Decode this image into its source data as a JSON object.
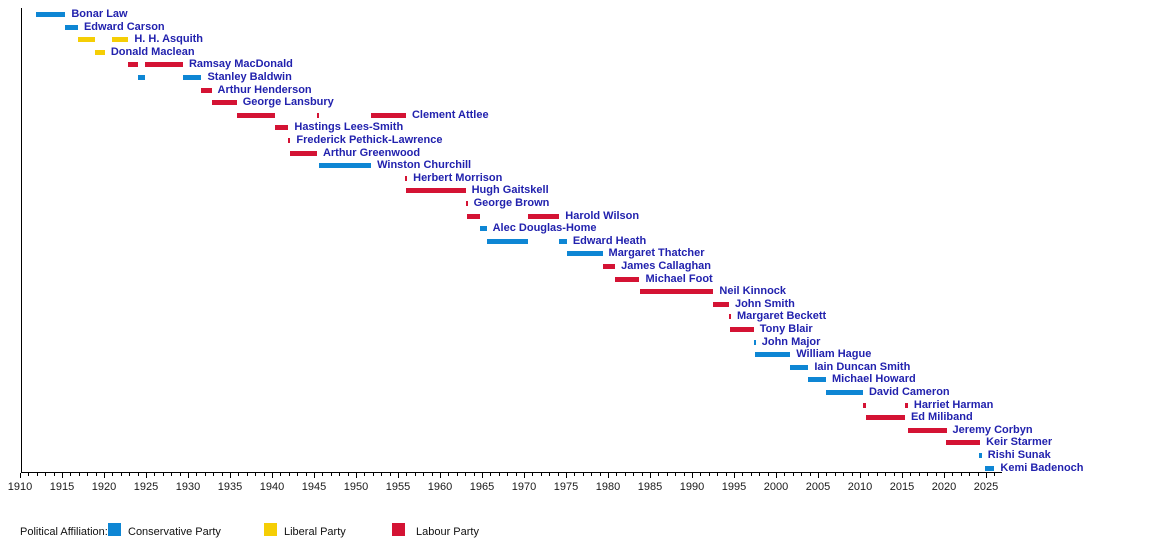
{
  "chart": {
    "legend_title": "Political Affiliation:",
    "label_color": "#2222AE",
    "axis_color": "#000000",
    "parties": {
      "conservative": {
        "label": "Conservative Party",
        "color": "#0E86D4"
      },
      "liberal": {
        "label": "Liberal Party",
        "color": "#F5CE05"
      },
      "labour": {
        "label": "Labour Party",
        "color": "#D41334"
      }
    }
  },
  "chart_data": {
    "type": "bar",
    "subtype": "gantt-timeline",
    "title": "",
    "xlabel": "",
    "ylabel": "",
    "x_axis": {
      "min": 1910,
      "max": 2027,
      "major_tick_step": 5,
      "minor_tick_step": 1,
      "tick_labels": [
        1910,
        1915,
        1920,
        1925,
        1930,
        1935,
        1940,
        1945,
        1950,
        1955,
        1960,
        1965,
        1970,
        1975,
        1980,
        1985,
        1990,
        1995,
        2000,
        2005,
        2010,
        2015,
        2020,
        2025
      ]
    },
    "legend_position": "bottom",
    "rows": [
      {
        "name": "Bonar Law",
        "party": "conservative",
        "segments": [
          [
            1911.9,
            1915.4
          ]
        ]
      },
      {
        "name": "Edward Carson",
        "party": "conservative",
        "segments": [
          [
            1915.4,
            1916.9
          ]
        ]
      },
      {
        "name": "H. H. Asquith",
        "party": "liberal",
        "segments": [
          [
            1916.9,
            1918.9
          ],
          [
            1920.9,
            1922.9
          ]
        ]
      },
      {
        "name": "Donald Maclean",
        "party": "liberal",
        "segments": [
          [
            1918.9,
            1920.1
          ]
        ]
      },
      {
        "name": "Ramsay MacDonald",
        "party": "labour",
        "segments": [
          [
            1922.9,
            1924.05
          ],
          [
            1924.9,
            1929.4
          ]
        ]
      },
      {
        "name": "Stanley Baldwin",
        "party": "conservative",
        "segments": [
          [
            1924.05,
            1924.9
          ],
          [
            1929.4,
            1931.6
          ]
        ]
      },
      {
        "name": "Arthur Henderson",
        "party": "labour",
        "segments": [
          [
            1931.6,
            1932.8
          ]
        ]
      },
      {
        "name": "George Lansbury",
        "party": "labour",
        "segments": [
          [
            1932.8,
            1935.8
          ]
        ]
      },
      {
        "name": "Clement Attlee",
        "party": "labour",
        "segments": [
          [
            1935.8,
            1940.4
          ],
          [
            1945.35,
            1945.55
          ],
          [
            1951.8,
            1955.95
          ]
        ]
      },
      {
        "name": "Hastings Lees-Smith",
        "party": "labour",
        "segments": [
          [
            1940.4,
            1941.95
          ]
        ]
      },
      {
        "name": "Frederick Pethick-Lawrence",
        "party": "labour",
        "segments": [
          [
            1941.95,
            1942.15
          ]
        ]
      },
      {
        "name": "Arthur Greenwood",
        "party": "labour",
        "segments": [
          [
            1942.15,
            1945.35
          ]
        ]
      },
      {
        "name": "Winston Churchill",
        "party": "conservative",
        "segments": [
          [
            1945.55,
            1951.8
          ]
        ]
      },
      {
        "name": "Herbert Morrison",
        "party": "labour",
        "segments": [
          [
            1955.85,
            1956.0
          ]
        ]
      },
      {
        "name": "Hugh Gaitskell",
        "party": "labour",
        "segments": [
          [
            1955.95,
            1963.05
          ]
        ]
      },
      {
        "name": "George Brown",
        "party": "labour",
        "segments": [
          [
            1963.05,
            1963.2
          ]
        ]
      },
      {
        "name": "Harold Wilson",
        "party": "labour",
        "segments": [
          [
            1963.2,
            1964.8
          ],
          [
            1970.45,
            1974.2
          ]
        ]
      },
      {
        "name": "Alec Douglas-Home",
        "party": "conservative",
        "segments": [
          [
            1964.8,
            1965.55
          ]
        ]
      },
      {
        "name": "Edward Heath",
        "party": "conservative",
        "segments": [
          [
            1965.55,
            1970.45
          ],
          [
            1974.2,
            1975.1
          ]
        ]
      },
      {
        "name": "Margaret Thatcher",
        "party": "conservative",
        "segments": [
          [
            1975.1,
            1979.35
          ]
        ]
      },
      {
        "name": "James Callaghan",
        "party": "labour",
        "segments": [
          [
            1979.35,
            1980.85
          ]
        ]
      },
      {
        "name": "Michael Foot",
        "party": "labour",
        "segments": [
          [
            1980.85,
            1983.75
          ]
        ]
      },
      {
        "name": "Neil Kinnock",
        "party": "labour",
        "segments": [
          [
            1983.75,
            1992.55
          ]
        ]
      },
      {
        "name": "John Smith",
        "party": "labour",
        "segments": [
          [
            1992.55,
            1994.4
          ]
        ]
      },
      {
        "name": "Margaret Beckett",
        "party": "labour",
        "segments": [
          [
            1994.4,
            1994.55
          ]
        ]
      },
      {
        "name": "Tony Blair",
        "party": "labour",
        "segments": [
          [
            1994.55,
            1997.35
          ]
        ]
      },
      {
        "name": "John Major",
        "party": "conservative",
        "segments": [
          [
            1997.35,
            1997.5
          ]
        ]
      },
      {
        "name": "William Hague",
        "party": "conservative",
        "segments": [
          [
            1997.5,
            2001.7
          ]
        ]
      },
      {
        "name": "Iain Duncan Smith",
        "party": "conservative",
        "segments": [
          [
            2001.7,
            2003.85
          ]
        ]
      },
      {
        "name": "Michael Howard",
        "party": "conservative",
        "segments": [
          [
            2003.85,
            2005.95
          ]
        ]
      },
      {
        "name": "David Cameron",
        "party": "conservative",
        "segments": [
          [
            2005.95,
            2010.35
          ]
        ]
      },
      {
        "name": "Harriet Harman",
        "party": "labour",
        "segments": [
          [
            2010.35,
            2010.7
          ],
          [
            2015.35,
            2015.7
          ]
        ]
      },
      {
        "name": "Ed Miliband",
        "party": "labour",
        "segments": [
          [
            2010.7,
            2015.35
          ]
        ]
      },
      {
        "name": "Jeremy Corbyn",
        "party": "labour",
        "segments": [
          [
            2015.7,
            2020.3
          ]
        ]
      },
      {
        "name": "Keir Starmer",
        "party": "labour",
        "segments": [
          [
            2020.2,
            2024.3
          ]
        ]
      },
      {
        "name": "Rishi Sunak",
        "party": "conservative",
        "segments": [
          [
            2024.2,
            2024.5
          ]
        ]
      },
      {
        "name": "Kemi Badenoch",
        "party": "conservative",
        "segments": [
          [
            2024.9,
            2026.0
          ]
        ]
      }
    ]
  }
}
